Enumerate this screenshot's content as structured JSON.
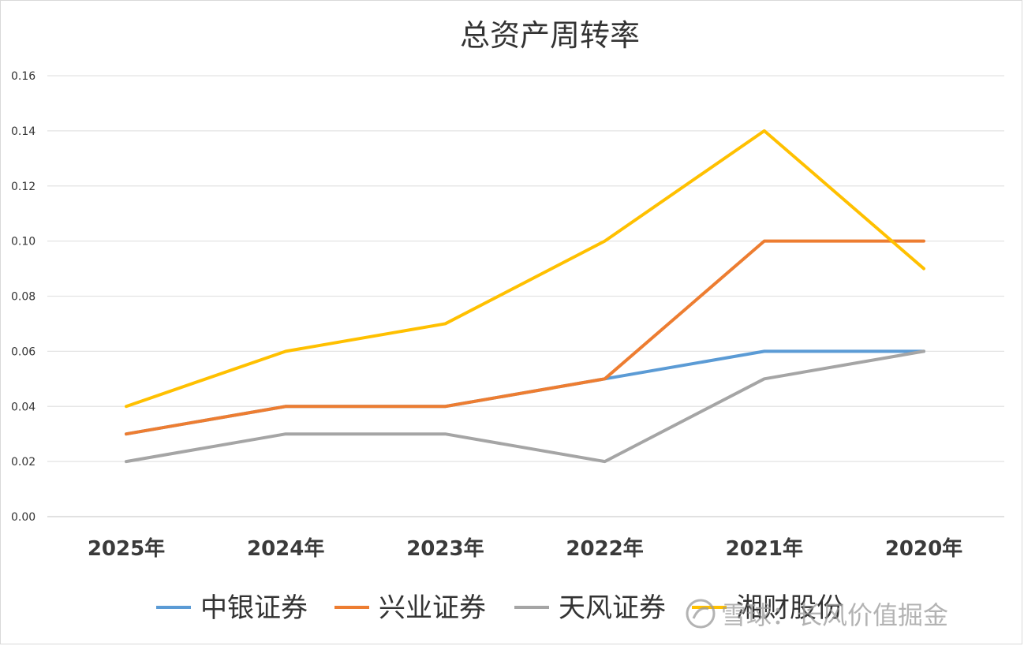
{
  "chart_data": {
    "type": "line",
    "title": "总资产周转率",
    "categories": [
      "2025年",
      "2024年",
      "2023年",
      "2022年",
      "2021年",
      "2020年"
    ],
    "series": [
      {
        "name": "中银证券",
        "color": "#5b9bd5",
        "values": [
          0.03,
          0.04,
          0.04,
          0.05,
          0.06,
          0.06
        ]
      },
      {
        "name": "兴业证券",
        "color": "#ed7d31",
        "values": [
          0.03,
          0.04,
          0.04,
          0.05,
          0.1,
          0.1
        ]
      },
      {
        "name": "天风证券",
        "color": "#a5a5a5",
        "values": [
          0.02,
          0.03,
          0.03,
          0.02,
          0.05,
          0.06
        ]
      },
      {
        "name": "湘财股份",
        "color": "#ffc000",
        "values": [
          0.04,
          0.06,
          0.07,
          0.1,
          0.14,
          0.09
        ]
      }
    ],
    "ylim": [
      0,
      0.16
    ],
    "yticks": [
      "0.00",
      "0.02",
      "0.04",
      "0.06",
      "0.08",
      "0.10",
      "0.12",
      "0.14",
      "0.16"
    ],
    "grid": true,
    "legend_position": "bottom"
  },
  "watermark": {
    "text": "雪球：长风价值掘金"
  }
}
